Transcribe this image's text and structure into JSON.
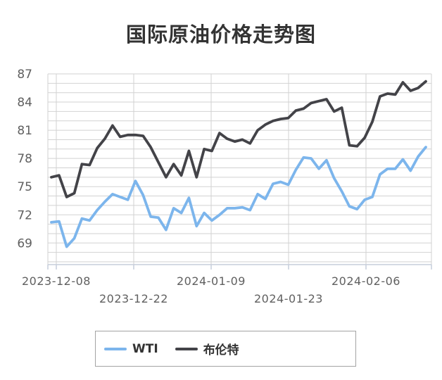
{
  "title": "国际原油价格走势图",
  "legend": {
    "items": [
      {
        "label": "WTI",
        "color": "#7cb5ec"
      },
      {
        "label": "布伦特",
        "color": "#434348"
      }
    ]
  },
  "colors": {
    "background": "#ffffff",
    "grid_line": "#d2d2d2",
    "axis_line": "#c6cedb",
    "axis_label": "#606060",
    "title_text": "#333333",
    "legend_border": "#a3a3a3",
    "wti_line": "#7cb5ec",
    "brent_line": "#434348"
  },
  "chart_data": {
    "type": "line",
    "title": "国际原油价格走势图",
    "xlabel": "",
    "ylabel": "",
    "grid": true,
    "legend_position": "bottom",
    "ylim": [
      66.7,
      87
    ],
    "y_tick_labels": [
      69,
      72,
      75,
      78,
      81,
      84,
      87
    ],
    "minor_y_grid_interval": 1,
    "x_tick_labels": [
      "2023-12-08",
      "2023-12-22",
      "2024-01-09",
      "2024-01-23",
      "2024-02-06"
    ],
    "x_ticks_every_n_points": 10,
    "dates": [
      "2023-12-08",
      "2023-12-11",
      "2023-12-12",
      "2023-12-13",
      "2023-12-14",
      "2023-12-15",
      "2023-12-18",
      "2023-12-19",
      "2023-12-20",
      "2023-12-21",
      "2023-12-22",
      "2023-12-26",
      "2023-12-27",
      "2023-12-28",
      "2023-12-29",
      "2024-01-02",
      "2024-01-03",
      "2024-01-04",
      "2024-01-05",
      "2024-01-08",
      "2024-01-09",
      "2024-01-10",
      "2024-01-11",
      "2024-01-12",
      "2024-01-15",
      "2024-01-16",
      "2024-01-17",
      "2024-01-18",
      "2024-01-19",
      "2024-01-22",
      "2024-01-23",
      "2024-01-24",
      "2024-01-25",
      "2024-01-26",
      "2024-01-29",
      "2024-01-30",
      "2024-01-31",
      "2024-02-01",
      "2024-02-02",
      "2024-02-05",
      "2024-02-06",
      "2024-02-07",
      "2024-02-08",
      "2024-02-09",
      "2024-02-12",
      "2024-02-13",
      "2024-02-14",
      "2024-02-15",
      "2024-02-16",
      "2024-02-19"
    ],
    "series": [
      {
        "name": "WTI",
        "color": "#7cb5ec",
        "values": [
          71.2,
          71.3,
          68.6,
          69.5,
          71.6,
          71.4,
          72.5,
          73.4,
          74.2,
          73.9,
          73.6,
          75.6,
          74.1,
          71.8,
          71.7,
          70.4,
          72.7,
          72.2,
          73.8,
          70.8,
          72.2,
          71.4,
          72.0,
          72.7,
          72.7,
          72.8,
          72.5,
          74.2,
          73.7,
          75.3,
          75.5,
          75.2,
          76.8,
          78.1,
          78.0,
          76.9,
          77.8,
          75.9,
          74.5,
          72.9,
          72.6,
          73.6,
          73.9,
          76.3,
          76.9,
          76.9,
          77.9,
          76.7,
          78.2,
          79.2
        ]
      },
      {
        "name": "布伦特",
        "color": "#434348",
        "values": [
          76.0,
          76.2,
          73.9,
          74.3,
          77.4,
          77.3,
          79.1,
          80.1,
          81.5,
          80.3,
          80.5,
          80.5,
          80.4,
          79.2,
          77.6,
          76.0,
          77.4,
          76.2,
          78.8,
          76.0,
          79.0,
          78.8,
          80.7,
          80.1,
          79.8,
          80.0,
          79.6,
          81.0,
          81.6,
          82.0,
          82.2,
          82.3,
          83.1,
          83.3,
          83.9,
          84.1,
          84.3,
          83.0,
          83.4,
          79.4,
          79.3,
          80.2,
          81.9,
          84.6,
          84.9,
          84.8,
          86.1,
          85.2,
          85.5,
          86.2
        ]
      }
    ]
  }
}
